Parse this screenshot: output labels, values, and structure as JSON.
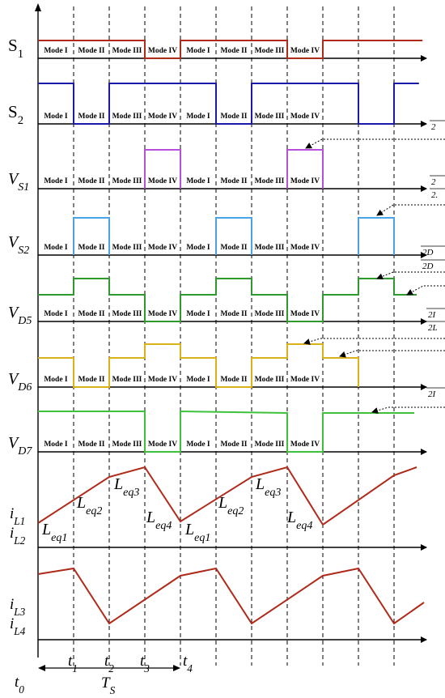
{
  "rows": [
    {
      "id": "s1",
      "label": "S",
      "sub": "1",
      "italic": false,
      "color": "#b02a1a",
      "labelY": 63,
      "baseY": 72,
      "modes": [
        "Mode I",
        "Mode II",
        "Mode III",
        "Mode IV",
        "Mode I",
        "Mode II",
        "Mode III",
        "Mode IV"
      ]
    },
    {
      "id": "s2",
      "label": "S",
      "sub": "2",
      "italic": false,
      "color": "#1a1aa6",
      "labelY": 145,
      "baseY": 153,
      "modes": [
        "Mode I",
        "Mode II",
        "Mode III",
        "Mode IV",
        "Mode I",
        "Mode II",
        "Mode III",
        "Mode IV"
      ]
    },
    {
      "id": "vs1",
      "label": "V",
      "sub": "S1",
      "italic": true,
      "color": "#b84fd8",
      "labelY": 227,
      "baseY": 233,
      "modes": [
        "Mode I",
        "Mode II",
        "Mode III",
        "Mode IV",
        "Mode I",
        "Mode II",
        "Mode III",
        "Mode IV"
      ]
    },
    {
      "id": "vs2",
      "label": "V",
      "sub": "S2",
      "italic": true,
      "color": "#4aa3e6",
      "labelY": 305,
      "baseY": 315,
      "modes": [
        "Mode I",
        "Mode II",
        "Mode III",
        "Mode IV",
        "Mode I",
        "Mode II",
        "Mode III",
        "Mode IV"
      ]
    },
    {
      "id": "vd5",
      "label": "V",
      "sub": "D5",
      "italic": true,
      "color": "#2e9a2e",
      "labelY": 392,
      "baseY": 397,
      "modes": [
        "Mode I",
        "Mode II",
        "Mode III",
        "Mode IV",
        "Mode I",
        "Mode II",
        "Mode III",
        "Mode IV"
      ]
    },
    {
      "id": "vd6",
      "label": "V",
      "sub": "D6",
      "italic": true,
      "color": "#d9b21a",
      "labelY": 474,
      "baseY": 478,
      "modes": [
        "Mode I",
        "Mode II",
        "Mode III",
        "Mode IV",
        "Mode I",
        "Mode II",
        "Mode III",
        "Mode IV"
      ]
    },
    {
      "id": "vd7",
      "label": "V",
      "sub": "D7",
      "italic": true,
      "color": "#3ec23e",
      "labelY": 553,
      "baseY": 558,
      "modes": [
        "Mode I",
        "Mode II",
        "Mode III",
        "Mode IV",
        "Mode I",
        "Mode II",
        "Mode III",
        "Mode IV"
      ]
    },
    {
      "id": "il12",
      "label": "i",
      "sub": "L1",
      "label2": "i",
      "sub2": "L2",
      "italic": true,
      "color": "#b02a1a",
      "baseY": 676
    },
    {
      "id": "il34",
      "label": "i",
      "sub": "L3",
      "label2": "i",
      "sub2": "L4",
      "italic": true,
      "color": "#b02a1a",
      "baseY": 790
    }
  ],
  "inductance_labels": [
    {
      "text": "L",
      "sub": "eq1"
    },
    {
      "text": "L",
      "sub": "eq2"
    },
    {
      "text": "L",
      "sub": "eq3"
    },
    {
      "text": "L",
      "sub": "eq4"
    },
    {
      "text": "L",
      "sub": "eq1"
    },
    {
      "text": "L",
      "sub": "eq2"
    },
    {
      "text": "L",
      "sub": "eq3"
    },
    {
      "text": "L",
      "sub": "eq4"
    }
  ],
  "time_labels": [
    {
      "t": "t",
      "sub": "0"
    },
    {
      "t": "t",
      "sub": "1"
    },
    {
      "t": "t",
      "sub": "2"
    },
    {
      "t": "t",
      "sub": "3"
    },
    {
      "t": "t",
      "sub": "4"
    }
  ],
  "period_label": {
    "text": "T",
    "sub": "S"
  },
  "right_margin_text": [
    "2",
    "2",
    "2.",
    "2D",
    "2D",
    "2I",
    "2L",
    "2I"
  ]
}
